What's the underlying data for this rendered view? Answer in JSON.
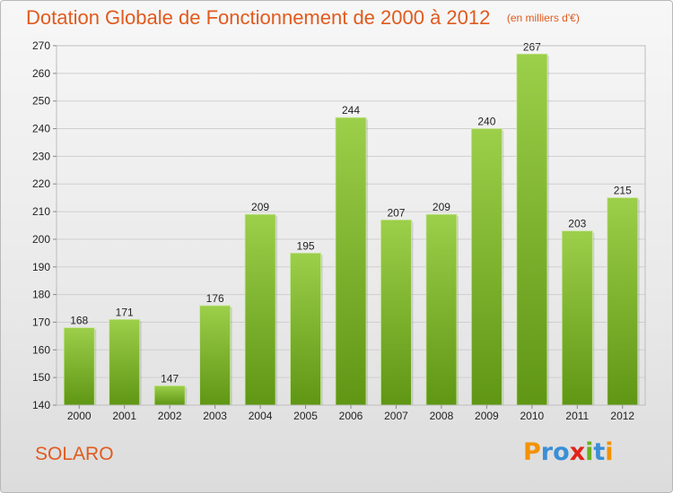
{
  "header": {
    "title": "Dotation Globale de Fonctionnement de 2000 à 2012",
    "subtitle": "(en milliers d'€)"
  },
  "footer": {
    "commune": "SOLARO",
    "logo_text": "Proxiti"
  },
  "colors": {
    "title": "#e05a1e",
    "bar_top": "#9ccf4a",
    "bar_bottom": "#5f9614",
    "grid": "#cfcfcf"
  },
  "chart_data": {
    "type": "bar",
    "title": "Dotation Globale de Fonctionnement de 2000 à 2012",
    "subtitle": "(en milliers d'€)",
    "xlabel": "",
    "ylabel": "",
    "categories": [
      "2000",
      "2001",
      "2002",
      "2003",
      "2004",
      "2005",
      "2006",
      "2007",
      "2008",
      "2009",
      "2010",
      "2011",
      "2012"
    ],
    "values": [
      168,
      171,
      147,
      176,
      209,
      195,
      244,
      207,
      209,
      240,
      267,
      203,
      215
    ],
    "ylim": [
      140,
      270
    ],
    "yticks": [
      140,
      150,
      160,
      170,
      180,
      190,
      200,
      210,
      220,
      230,
      240,
      250,
      260,
      270
    ],
    "grid": true,
    "legend": "none"
  }
}
